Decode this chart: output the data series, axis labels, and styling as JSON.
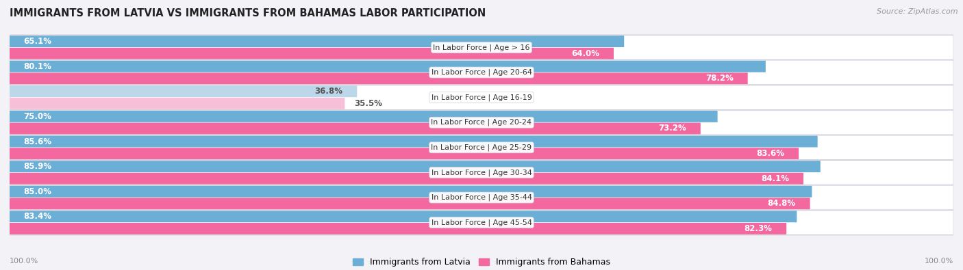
{
  "title": "IMMIGRANTS FROM LATVIA VS IMMIGRANTS FROM BAHAMAS LABOR PARTICIPATION",
  "source": "Source: ZipAtlas.com",
  "categories": [
    "In Labor Force | Age > 16",
    "In Labor Force | Age 20-64",
    "In Labor Force | Age 16-19",
    "In Labor Force | Age 20-24",
    "In Labor Force | Age 25-29",
    "In Labor Force | Age 30-34",
    "In Labor Force | Age 35-44",
    "In Labor Force | Age 45-54"
  ],
  "latvia_values": [
    65.1,
    80.1,
    36.8,
    75.0,
    85.6,
    85.9,
    85.0,
    83.4
  ],
  "bahamas_values": [
    64.0,
    78.2,
    35.5,
    73.2,
    83.6,
    84.1,
    84.8,
    82.3
  ],
  "latvia_color": "#6baed6",
  "latvia_color_light": "#bdd7ea",
  "bahamas_color": "#f468a0",
  "bahamas_color_light": "#f8c0d8",
  "row_bg_color": "#e8e8ee",
  "bg_color": "#f2f2f7",
  "label_white": "#ffffff",
  "label_dark": "#555555",
  "footer_label": "100.0%",
  "legend_latvia": "Immigrants from Latvia",
  "legend_bahamas": "Immigrants from Bahamas",
  "max_val": 100.0,
  "threshold": 50.0
}
